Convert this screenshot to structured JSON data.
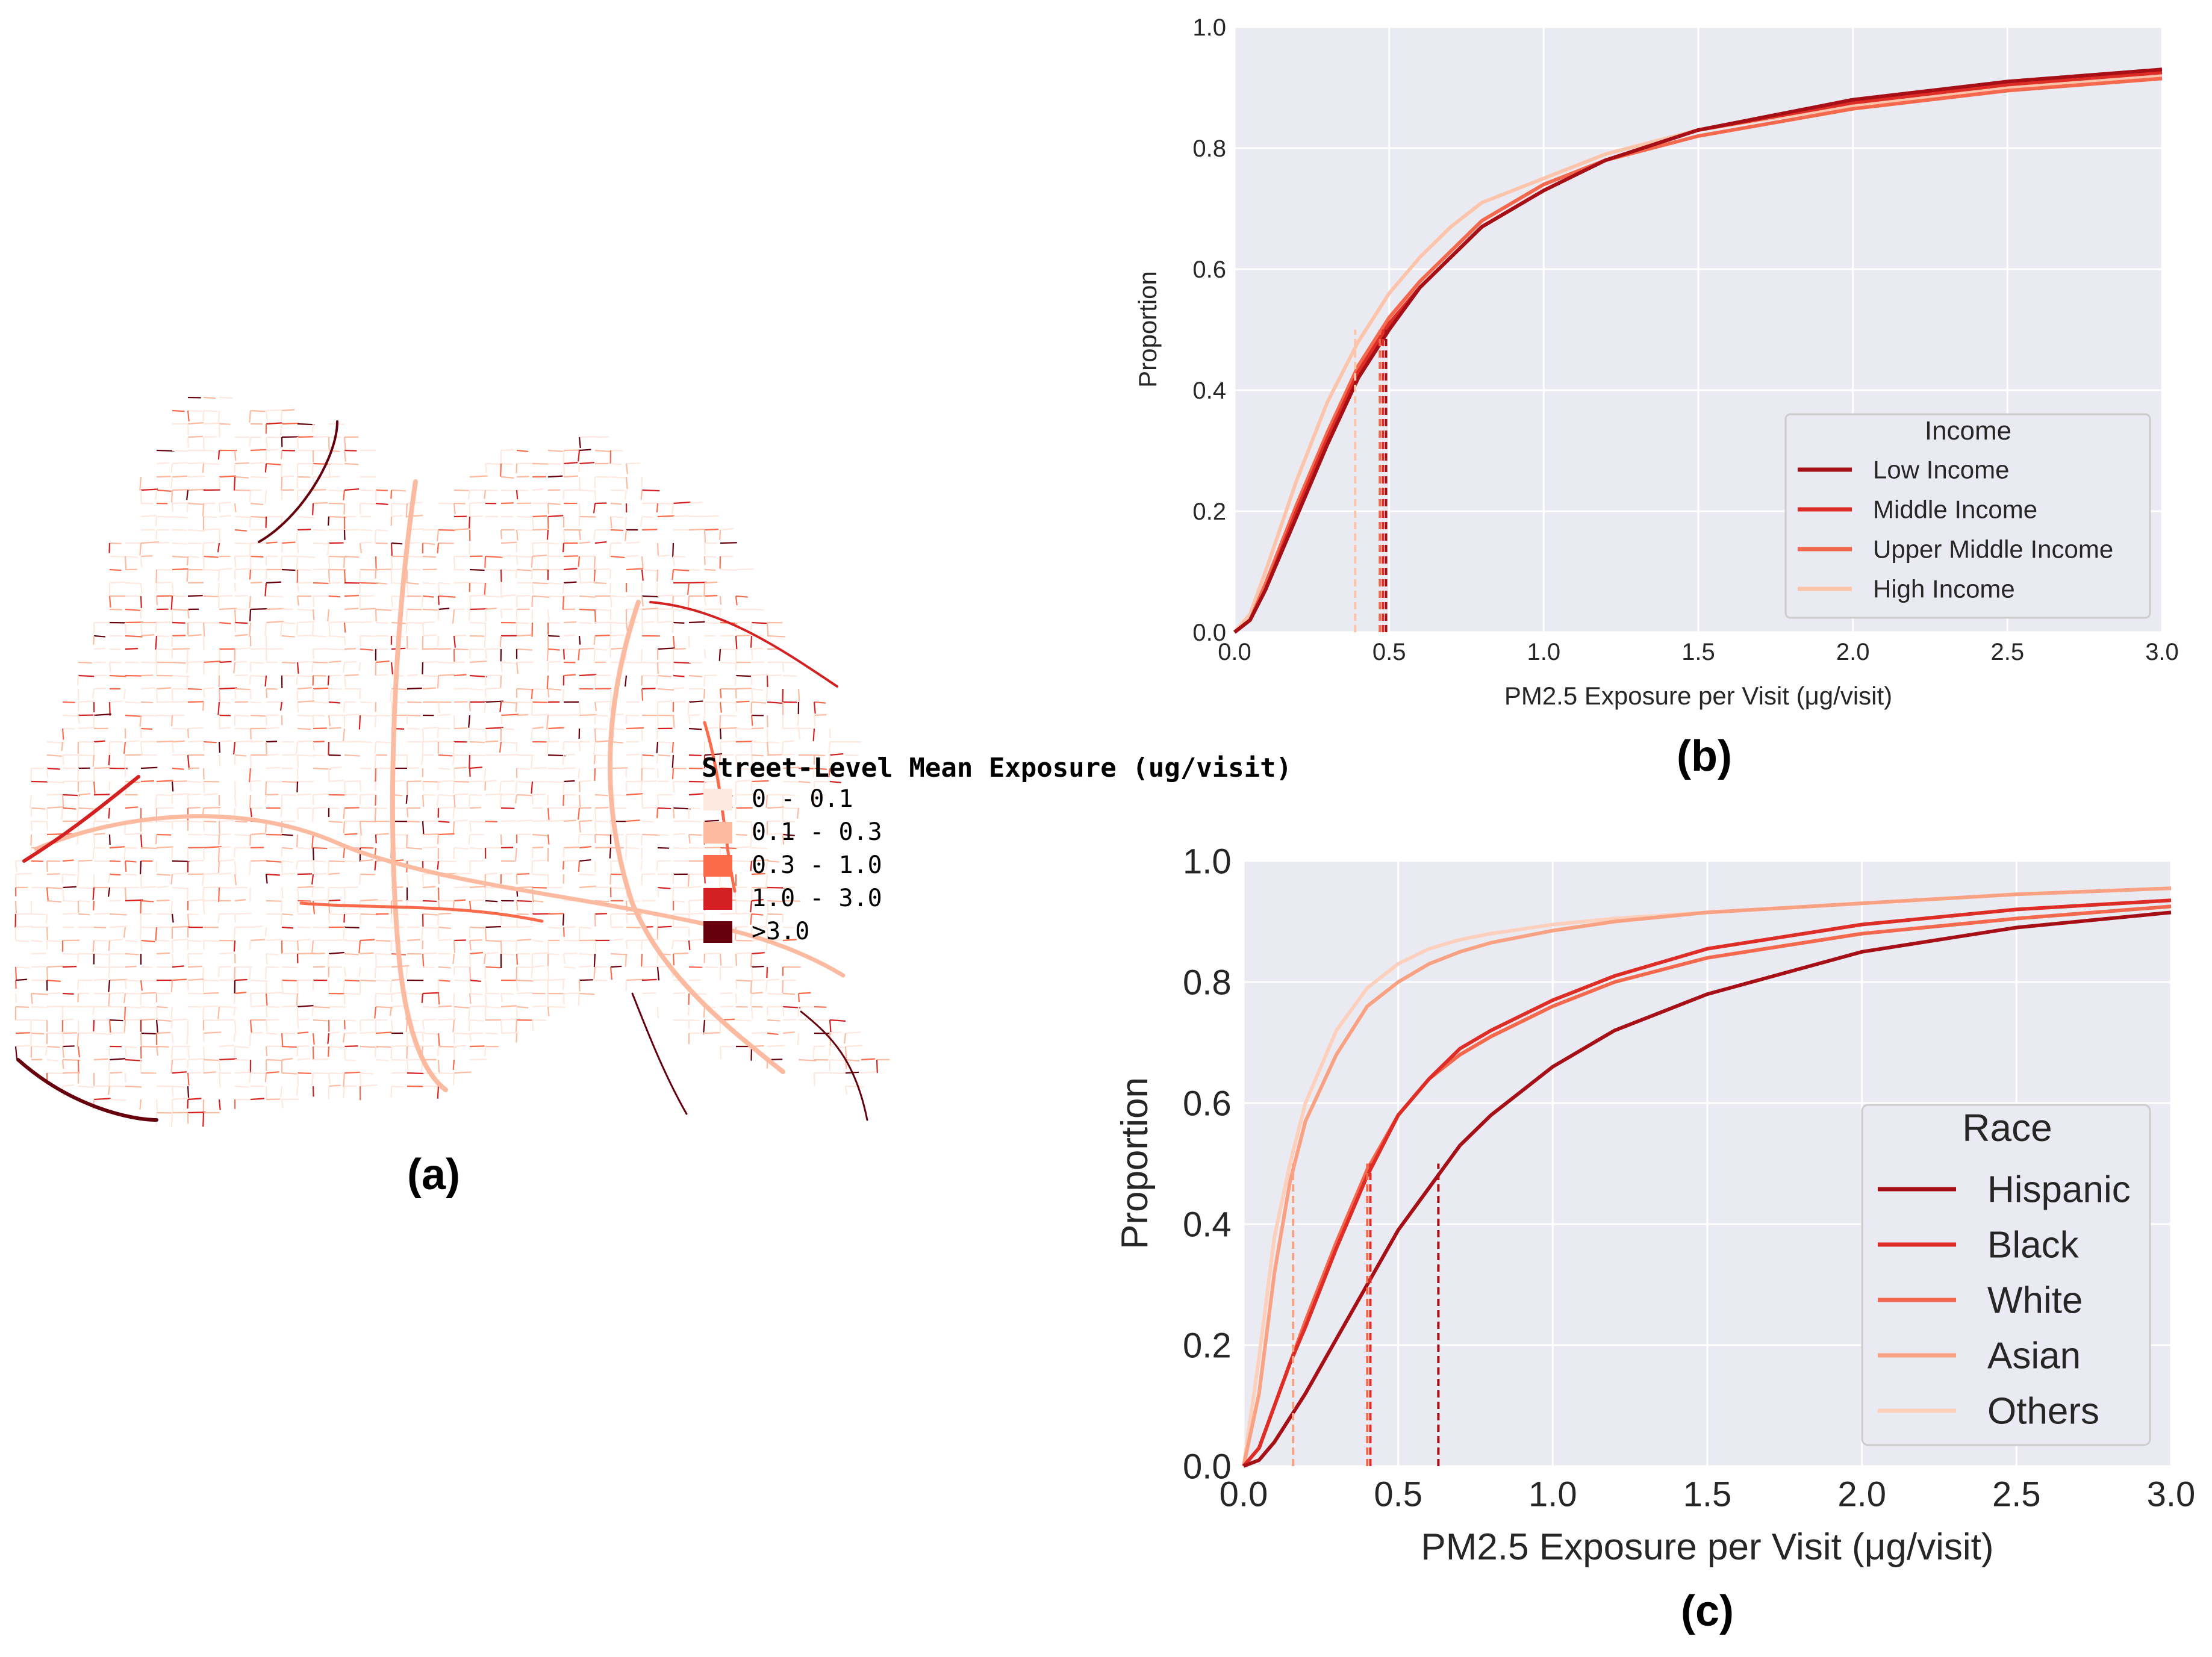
{
  "panels": {
    "a": "(a)",
    "b": "(b)",
    "c": "(c)"
  },
  "map": {
    "legend_title": "Street-Level Mean Exposure (ug/visit)",
    "legend_items": [
      {
        "label": "0 - 0.1",
        "color": "#fee8df"
      },
      {
        "label": "0.1 - 0.3",
        "color": "#fcbba1"
      },
      {
        "label": "0.3 - 1.0",
        "color": "#fb6a4a"
      },
      {
        "label": "1.0 - 3.0",
        "color": "#d42020"
      },
      {
        "label": ">3.0",
        "color": "#67000d"
      }
    ]
  },
  "chart_data": [
    {
      "type": "line",
      "panel": "(b)",
      "xlabel": "PM2.5 Exposure per Visit (μg/visit)",
      "ylabel": "Proportion",
      "xlim": [
        0,
        3.0
      ],
      "ylim": [
        0,
        1.0
      ],
      "xticks": [
        "0.0",
        "0.5",
        "1.0",
        "1.5",
        "2.0",
        "2.5",
        "3.0"
      ],
      "yticks": [
        "0.0",
        "0.2",
        "0.4",
        "0.6",
        "0.8",
        "1.0"
      ],
      "grid": true,
      "legend_title": "Income",
      "legend_position": "lower-right",
      "x": [
        0.0,
        0.05,
        0.1,
        0.2,
        0.3,
        0.4,
        0.5,
        0.6,
        0.7,
        0.8,
        1.0,
        1.2,
        1.5,
        2.0,
        2.5,
        3.0
      ],
      "series": [
        {
          "name": "Low Income",
          "color": "#a50f15",
          "median": 0.49,
          "values": [
            0.0,
            0.02,
            0.07,
            0.19,
            0.31,
            0.42,
            0.5,
            0.57,
            0.62,
            0.67,
            0.73,
            0.78,
            0.83,
            0.88,
            0.91,
            0.93
          ]
        },
        {
          "name": "Middle Income",
          "color": "#de2d26",
          "median": 0.48,
          "values": [
            0.0,
            0.02,
            0.07,
            0.2,
            0.32,
            0.43,
            0.51,
            0.57,
            0.62,
            0.67,
            0.73,
            0.78,
            0.83,
            0.875,
            0.905,
            0.925
          ]
        },
        {
          "name": "Upper Middle Income",
          "color": "#f4694d",
          "median": 0.47,
          "values": [
            0.0,
            0.02,
            0.08,
            0.21,
            0.33,
            0.44,
            0.52,
            0.58,
            0.63,
            0.68,
            0.74,
            0.78,
            0.82,
            0.865,
            0.895,
            0.915
          ]
        },
        {
          "name": "High Income",
          "color": "#fcc5ab",
          "median": 0.39,
          "values": [
            0.0,
            0.03,
            0.1,
            0.25,
            0.38,
            0.48,
            0.56,
            0.62,
            0.67,
            0.71,
            0.75,
            0.79,
            0.83,
            0.87,
            0.9,
            0.92
          ]
        }
      ]
    },
    {
      "type": "line",
      "panel": "(c)",
      "xlabel": "PM2.5 Exposure per Visit (μg/visit)",
      "ylabel": "Proportion",
      "xlim": [
        0,
        3.0
      ],
      "ylim": [
        0,
        1.0
      ],
      "xticks": [
        "0.0",
        "0.5",
        "1.0",
        "1.5",
        "2.0",
        "2.5",
        "3.0"
      ],
      "yticks": [
        "0.0",
        "0.2",
        "0.4",
        "0.6",
        "0.8",
        "1.0"
      ],
      "grid": true,
      "legend_title": "Race",
      "legend_position": "lower-right",
      "x": [
        0.0,
        0.05,
        0.1,
        0.15,
        0.2,
        0.3,
        0.4,
        0.5,
        0.6,
        0.7,
        0.8,
        1.0,
        1.2,
        1.5,
        2.0,
        2.5,
        3.0
      ],
      "series": [
        {
          "name": "Hispanic",
          "color": "#a50f15",
          "median": 0.63,
          "values": [
            0.0,
            0.01,
            0.04,
            0.08,
            0.12,
            0.21,
            0.3,
            0.39,
            0.46,
            0.53,
            0.58,
            0.66,
            0.72,
            0.78,
            0.85,
            0.89,
            0.915
          ]
        },
        {
          "name": "Black",
          "color": "#de2d26",
          "median": 0.41,
          "values": [
            0.0,
            0.03,
            0.1,
            0.17,
            0.23,
            0.36,
            0.48,
            0.58,
            0.64,
            0.69,
            0.72,
            0.77,
            0.81,
            0.855,
            0.895,
            0.92,
            0.935
          ]
        },
        {
          "name": "White",
          "color": "#f4694d",
          "median": 0.4,
          "values": [
            0.0,
            0.03,
            0.1,
            0.17,
            0.24,
            0.37,
            0.49,
            0.58,
            0.64,
            0.68,
            0.71,
            0.76,
            0.8,
            0.84,
            0.88,
            0.905,
            0.925
          ]
        },
        {
          "name": "Asian",
          "color": "#f9a183",
          "median": 0.16,
          "values": [
            0.0,
            0.12,
            0.32,
            0.47,
            0.57,
            0.68,
            0.76,
            0.8,
            0.83,
            0.85,
            0.865,
            0.885,
            0.9,
            0.915,
            0.93,
            0.945,
            0.955
          ]
        },
        {
          "name": "Others",
          "color": "#fdd0bd",
          "median": 0.16,
          "values": [
            0.0,
            0.18,
            0.38,
            0.5,
            0.6,
            0.72,
            0.79,
            0.83,
            0.855,
            0.87,
            0.88,
            0.895,
            0.905,
            0.915,
            0.93,
            0.945,
            0.955
          ]
        }
      ]
    }
  ]
}
